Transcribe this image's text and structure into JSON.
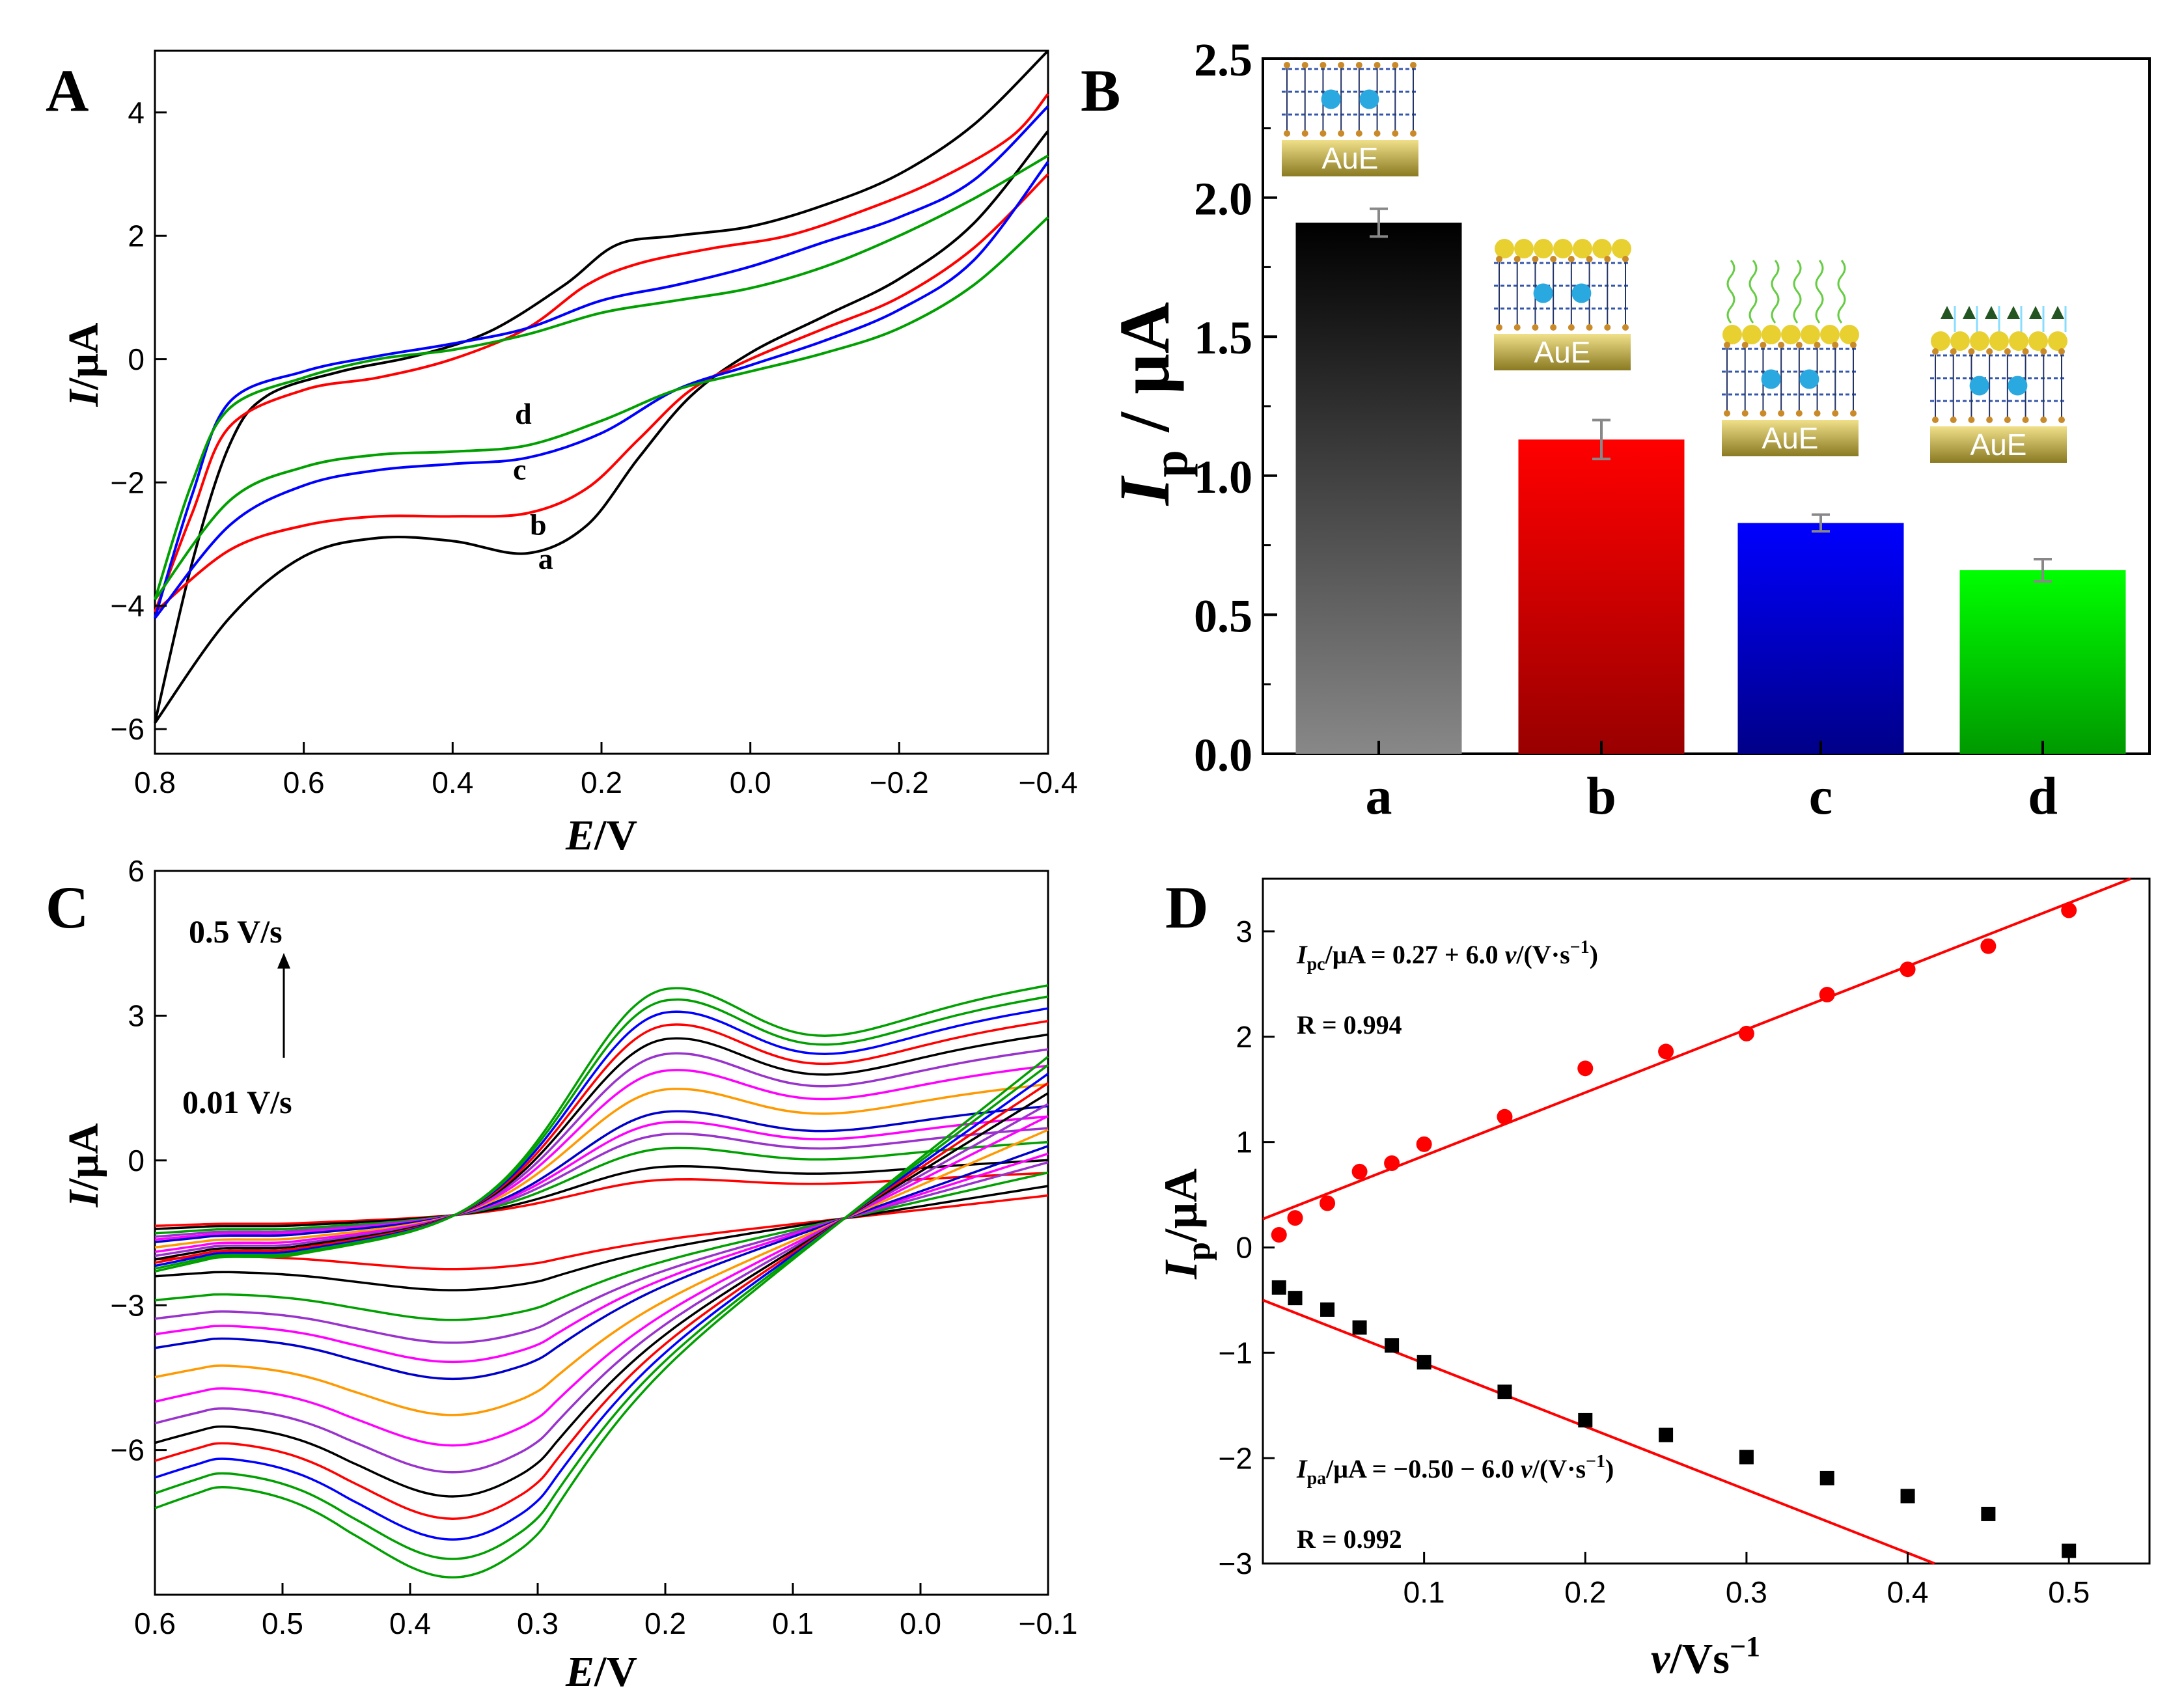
{
  "chart_data": [
    {
      "panel": "A",
      "type": "line",
      "xlabel_italic": "E",
      "xlabel_unit": "/V",
      "ylabel_italic": "I",
      "ylabel_unit": "/μA",
      "xlim": [
        0.8,
        -0.4
      ],
      "ylim": [
        -6.4,
        5.0
      ],
      "xticks": [
        0.8,
        0.6,
        0.4,
        0.2,
        0.0,
        -0.2,
        -0.4
      ],
      "xtick_labels": [
        "0.8",
        "0.6",
        "0.4",
        "0.2",
        "0.0",
        "−0.2",
        "−0.4"
      ],
      "yticks": [
        4,
        2,
        0,
        -2,
        -4,
        -6
      ],
      "ytick_labels": [
        "4",
        "2",
        "0",
        "−2",
        "−4",
        "−6"
      ],
      "series": [
        {
          "name": "a",
          "color": "#000000",
          "upper": [
            [
              0.8,
              -5.9
            ],
            [
              0.75,
              -3.3
            ],
            [
              0.7,
              -1.4
            ],
            [
              0.65,
              -0.6
            ],
            [
              0.55,
              -0.2
            ],
            [
              0.45,
              0.05
            ],
            [
              0.35,
              0.45
            ],
            [
              0.25,
              1.2
            ],
            [
              0.18,
              1.85
            ],
            [
              0.1,
              2.0
            ],
            [
              0.0,
              2.15
            ],
            [
              -0.1,
              2.5
            ],
            [
              -0.2,
              3.0
            ],
            [
              -0.3,
              3.8
            ],
            [
              -0.4,
              5.0
            ]
          ],
          "lower": [
            [
              0.8,
              -5.9
            ],
            [
              0.7,
              -4.2
            ],
            [
              0.6,
              -3.2
            ],
            [
              0.5,
              -2.9
            ],
            [
              0.4,
              -2.95
            ],
            [
              0.3,
              -3.15
            ],
            [
              0.22,
              -2.7
            ],
            [
              0.15,
              -1.6
            ],
            [
              0.08,
              -0.6
            ],
            [
              0.0,
              0.1
            ],
            [
              -0.1,
              0.7
            ],
            [
              -0.2,
              1.3
            ],
            [
              -0.3,
              2.2
            ],
            [
              -0.4,
              3.7
            ]
          ]
        },
        {
          "name": "b",
          "color": "#ff0000",
          "upper": [
            [
              0.8,
              -4.1
            ],
            [
              0.75,
              -2.5
            ],
            [
              0.7,
              -1.1
            ],
            [
              0.6,
              -0.5
            ],
            [
              0.5,
              -0.3
            ],
            [
              0.4,
              0.0
            ],
            [
              0.3,
              0.5
            ],
            [
              0.22,
              1.2
            ],
            [
              0.15,
              1.55
            ],
            [
              0.05,
              1.8
            ],
            [
              -0.05,
              2.0
            ],
            [
              -0.15,
              2.4
            ],
            [
              -0.25,
              2.9
            ],
            [
              -0.35,
              3.6
            ],
            [
              -0.4,
              4.3
            ]
          ],
          "lower": [
            [
              0.8,
              -4.1
            ],
            [
              0.7,
              -3.1
            ],
            [
              0.6,
              -2.7
            ],
            [
              0.5,
              -2.55
            ],
            [
              0.4,
              -2.55
            ],
            [
              0.3,
              -2.5
            ],
            [
              0.22,
              -2.1
            ],
            [
              0.15,
              -1.3
            ],
            [
              0.08,
              -0.5
            ],
            [
              0.0,
              0.0
            ],
            [
              -0.1,
              0.5
            ],
            [
              -0.2,
              1.0
            ],
            [
              -0.3,
              1.8
            ],
            [
              -0.4,
              3.0
            ]
          ]
        },
        {
          "name": "c",
          "color": "#0000ff",
          "upper": [
            [
              0.8,
              -4.2
            ],
            [
              0.75,
              -2.2
            ],
            [
              0.7,
              -0.7
            ],
            [
              0.6,
              -0.2
            ],
            [
              0.5,
              0.05
            ],
            [
              0.4,
              0.25
            ],
            [
              0.3,
              0.5
            ],
            [
              0.2,
              0.95
            ],
            [
              0.1,
              1.2
            ],
            [
              0.0,
              1.5
            ],
            [
              -0.1,
              1.9
            ],
            [
              -0.2,
              2.3
            ],
            [
              -0.3,
              2.9
            ],
            [
              -0.4,
              4.1
            ]
          ],
          "lower": [
            [
              0.8,
              -4.2
            ],
            [
              0.7,
              -2.7
            ],
            [
              0.6,
              -2.05
            ],
            [
              0.5,
              -1.8
            ],
            [
              0.4,
              -1.7
            ],
            [
              0.3,
              -1.6
            ],
            [
              0.2,
              -1.2
            ],
            [
              0.1,
              -0.5
            ],
            [
              0.0,
              -0.1
            ],
            [
              -0.1,
              0.3
            ],
            [
              -0.2,
              0.8
            ],
            [
              -0.3,
              1.6
            ],
            [
              -0.4,
              3.2
            ]
          ]
        },
        {
          "name": "d",
          "color": "#00a000",
          "upper": [
            [
              0.8,
              -3.9
            ],
            [
              0.75,
              -2.0
            ],
            [
              0.7,
              -0.8
            ],
            [
              0.6,
              -0.3
            ],
            [
              0.5,
              0.0
            ],
            [
              0.4,
              0.15
            ],
            [
              0.3,
              0.4
            ],
            [
              0.2,
              0.75
            ],
            [
              0.1,
              0.95
            ],
            [
              0.0,
              1.15
            ],
            [
              -0.1,
              1.5
            ],
            [
              -0.2,
              2.0
            ],
            [
              -0.3,
              2.6
            ],
            [
              -0.4,
              3.3
            ]
          ],
          "lower": [
            [
              0.8,
              -3.9
            ],
            [
              0.7,
              -2.3
            ],
            [
              0.6,
              -1.75
            ],
            [
              0.5,
              -1.55
            ],
            [
              0.4,
              -1.5
            ],
            [
              0.3,
              -1.4
            ],
            [
              0.2,
              -1.0
            ],
            [
              0.1,
              -0.5
            ],
            [
              0.0,
              -0.2
            ],
            [
              -0.1,
              0.1
            ],
            [
              -0.2,
              0.5
            ],
            [
              -0.3,
              1.2
            ],
            [
              -0.4,
              2.3
            ]
          ]
        }
      ],
      "curve_labels": [
        {
          "text": "a",
          "x": 0.275,
          "y": -3.4
        },
        {
          "text": "b",
          "x": 0.285,
          "y": -2.85
        },
        {
          "text": "c",
          "x": 0.31,
          "y": -1.95
        },
        {
          "text": "d",
          "x": 0.305,
          "y": -1.05
        }
      ]
    },
    {
      "panel": "B",
      "type": "bar",
      "ylabel_italic": "I",
      "ylabel_sub": "p",
      "ylabel_unit": " / μA",
      "ylim": [
        0.0,
        2.5
      ],
      "yticks": [
        0.0,
        0.5,
        1.0,
        1.5,
        2.0,
        2.5
      ],
      "ytick_labels": [
        "0.0",
        "0.5",
        "1.0",
        "1.5",
        "2.0",
        "2.5"
      ],
      "categories": [
        "a",
        "b",
        "c",
        "d"
      ],
      "values": [
        1.91,
        1.13,
        0.83,
        0.66
      ],
      "errors": [
        0.05,
        0.07,
        0.03,
        0.04
      ],
      "colors_top": [
        "#000000",
        "#ff0000",
        "#0000ff",
        "#00ff00"
      ],
      "colors_bottom": [
        "#888888",
        "#990000",
        "#000088",
        "#009900"
      ],
      "electrode_label": "AuE"
    },
    {
      "panel": "C",
      "type": "line",
      "xlabel_italic": "E",
      "xlabel_unit": "/V",
      "ylabel_italic": "I",
      "ylabel_unit": "/μA",
      "xlim": [
        0.6,
        -0.1
      ],
      "ylim": [
        -9.0,
        6.0
      ],
      "xticks": [
        0.6,
        0.5,
        0.4,
        0.3,
        0.2,
        0.1,
        0.0,
        -0.1
      ],
      "xtick_labels": [
        "0.6",
        "0.5",
        "0.4",
        "0.3",
        "0.2",
        "0.1",
        "0.0",
        "−0.1"
      ],
      "yticks": [
        6,
        3,
        0,
        -3,
        -6
      ],
      "ytick_labels": [
        "6",
        "3",
        "0",
        "−3",
        "−6"
      ],
      "scan_rates": [
        0.01,
        0.02,
        0.04,
        0.06,
        0.08,
        0.1,
        0.15,
        0.2,
        0.25,
        0.3,
        0.35,
        0.4,
        0.45,
        0.5
      ],
      "colors": [
        "#ff0000",
        "#000000",
        "#00a000",
        "#9933cc",
        "#ff00ff",
        "#0000cc",
        "#ff9900",
        "#ff00ff",
        "#9933cc",
        "#000000",
        "#ff0000",
        "#0000ff",
        "#00a000",
        "#00a000"
      ],
      "annotation_top": "0.5 V/s",
      "annotation_bottom": "0.01 V/s"
    },
    {
      "panel": "D",
      "type": "scatter",
      "xlabel_italic": "v",
      "xlabel_unit": "/Vs",
      "xlabel_sup": "−1",
      "ylabel_italic": "I",
      "ylabel_sub": "p",
      "ylabel_unit": "/μA",
      "xlim": [
        0.0,
        0.55
      ],
      "ylim": [
        -3.0,
        3.5
      ],
      "xticks": [
        0.1,
        0.2,
        0.3,
        0.4,
        0.5
      ],
      "xtick_labels": [
        "0.1",
        "0.2",
        "0.3",
        "0.4",
        "0.5"
      ],
      "yticks": [
        3,
        2,
        1,
        0,
        -1,
        -2,
        -3
      ],
      "ytick_labels": [
        "3",
        "2",
        "1",
        "0",
        "−1",
        "−2",
        "−3"
      ],
      "series": [
        {
          "name": "Ipc",
          "marker": "circle",
          "color": "#ff0000",
          "x": [
            0.01,
            0.02,
            0.04,
            0.06,
            0.08,
            0.1,
            0.15,
            0.2,
            0.25,
            0.3,
            0.35,
            0.4,
            0.45,
            0.5
          ],
          "y": [
            0.12,
            0.28,
            0.42,
            0.72,
            0.8,
            0.98,
            1.24,
            1.7,
            1.86,
            2.03,
            2.4,
            2.64,
            2.86,
            3.2
          ],
          "fit": {
            "intercept": 0.27,
            "slope": 6.0
          }
        },
        {
          "name": "Ipa",
          "marker": "square",
          "color": "#000000",
          "x": [
            0.01,
            0.02,
            0.04,
            0.06,
            0.08,
            0.1,
            0.15,
            0.2,
            0.25,
            0.3,
            0.35,
            0.4,
            0.45,
            0.5
          ],
          "y": [
            -0.38,
            -0.48,
            -0.59,
            -0.76,
            -0.93,
            -1.09,
            -1.37,
            -1.64,
            -1.78,
            -1.99,
            -2.19,
            -2.36,
            -2.53,
            -2.88
          ],
          "fit": {
            "intercept": -0.5,
            "slope": -6.0
          }
        }
      ],
      "line_color": "#ff0000",
      "eq1": {
        "sym": "I",
        "sub": "pc",
        "rest": "/μA = 0.27 + 6.0 ",
        "var": "v",
        "tail": "/(V·s",
        "sup": "−1",
        "end": ")"
      },
      "r1": "R = 0.994",
      "eq2": {
        "sym": "I",
        "sub": "pa",
        "rest": "/μA = −0.50 − 6.0 ",
        "var": "v",
        "tail": "/(V·s",
        "sup": "−1",
        "end": ")"
      },
      "r2": "R = 0.992"
    }
  ],
  "panel_letters": [
    "A",
    "B",
    "C",
    "D"
  ]
}
